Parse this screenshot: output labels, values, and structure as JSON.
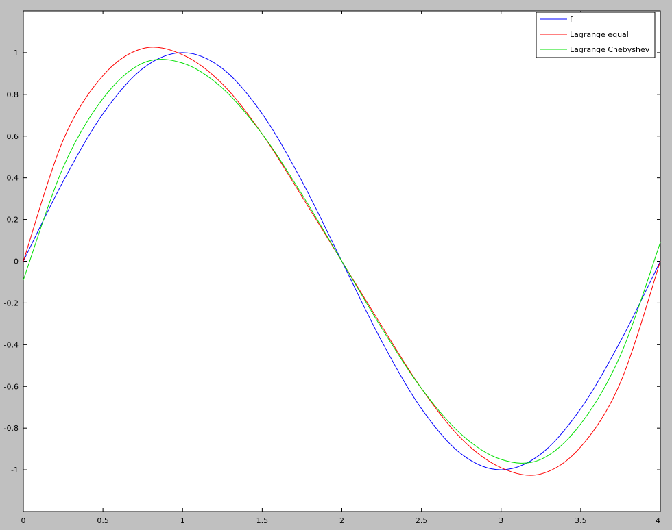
{
  "chart_data": {
    "type": "line",
    "title": "",
    "xlabel": "",
    "ylabel": "",
    "xlim": [
      0,
      4
    ],
    "ylim": [
      -1.2,
      1.2
    ],
    "xticks": [
      0,
      0.5,
      1,
      1.5,
      2,
      2.5,
      3,
      3.5,
      4
    ],
    "xtick_labels": [
      "0",
      "0.5",
      "1",
      "1.5",
      "2",
      "2.5",
      "3",
      "3.5",
      "4"
    ],
    "yticks": [
      -1,
      -0.8,
      -0.6,
      -0.4,
      -0.2,
      0,
      0.2,
      0.4,
      0.6,
      0.8,
      1
    ],
    "ytick_labels": [
      "-1",
      "-0.8",
      "-0.6",
      "-0.4",
      "-0.2",
      "0",
      "0.2",
      "0.4",
      "0.6",
      "0.8",
      "1"
    ],
    "grid": false,
    "legend_position": "top-right",
    "x": [
      0,
      0.25,
      0.5,
      0.75,
      1,
      1.25,
      1.5,
      1.75,
      2,
      2.25,
      2.5,
      2.75,
      3,
      3.25,
      3.5,
      3.75,
      4
    ],
    "series": [
      {
        "name": "f",
        "color": "#0000ff",
        "values": [
          0,
          0.383,
          0.707,
          0.924,
          1,
          0.924,
          0.707,
          0.383,
          0,
          -0.383,
          -0.707,
          -0.924,
          -1,
          -0.924,
          -0.707,
          -0.383,
          0
        ]
      },
      {
        "name": "Lagrange equal",
        "color": "#ff0000",
        "values": [
          0,
          0.58,
          0.89,
          1.02,
          0.99,
          0.85,
          0.61,
          0.31,
          0,
          -0.31,
          -0.61,
          -0.85,
          -0.99,
          -1.02,
          -0.89,
          -0.58,
          0
        ]
      },
      {
        "name": "Lagrange Chebyshev",
        "color": "#00e000",
        "values": [
          -0.09,
          0.45,
          0.78,
          0.95,
          0.95,
          0.83,
          0.61,
          0.32,
          0,
          -0.32,
          -0.61,
          -0.83,
          -0.95,
          -0.95,
          -0.78,
          -0.45,
          0.09
        ]
      }
    ]
  }
}
